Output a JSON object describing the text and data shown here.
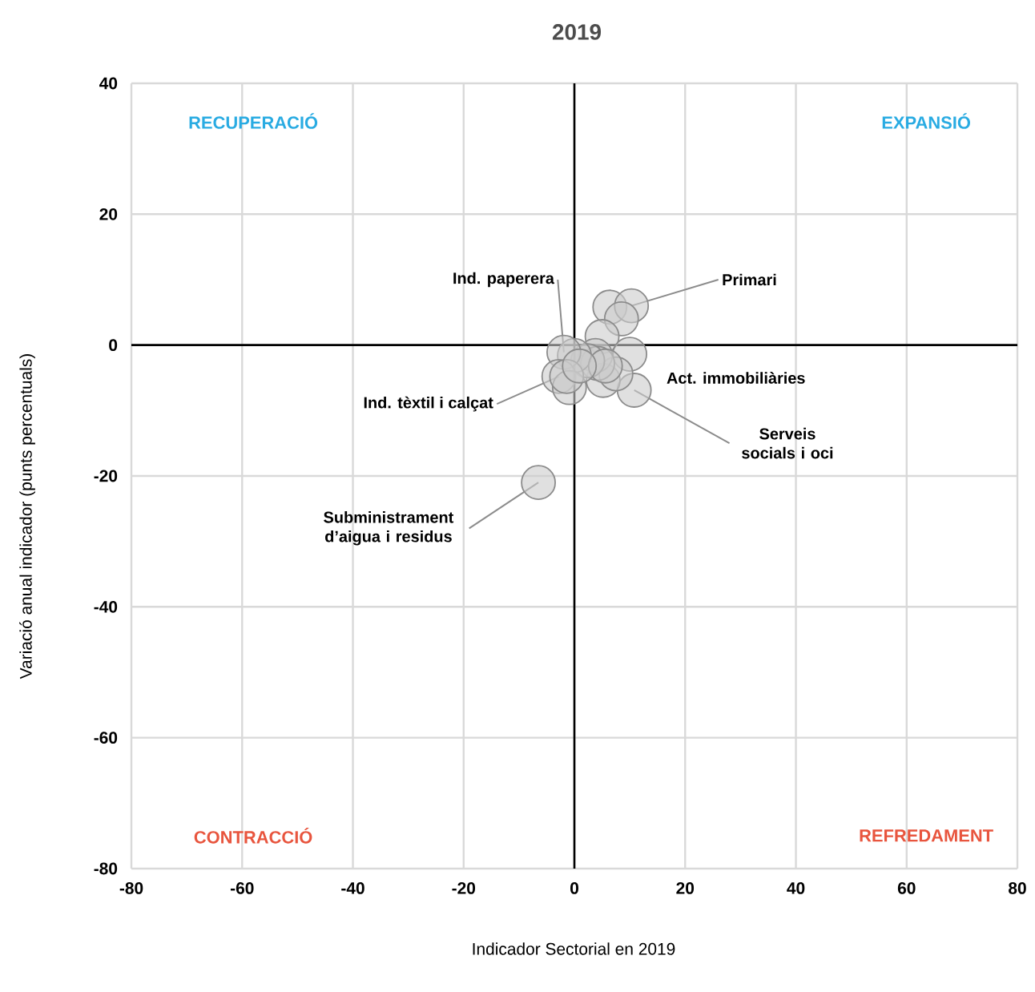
{
  "chart_data": {
    "type": "scatter",
    "title": "2019",
    "xlabel": "Indicador Sectorial en 2019",
    "ylabel": "Variació anual indicador (punts percentuals)",
    "xlim": [
      -80,
      80
    ],
    "ylim": [
      -80,
      40
    ],
    "xticks": [
      -80,
      -60,
      -40,
      -20,
      0,
      20,
      40,
      60,
      80
    ],
    "yticks": [
      -80,
      -60,
      -40,
      -20,
      0,
      20,
      40
    ],
    "grid": true,
    "series": [
      {
        "color": "#cccccc",
        "x": [
          -6.5,
          6.4,
          10.3,
          8.5,
          5.0,
          10.0,
          10.8,
          5.2,
          7.5,
          3.8,
          4.2,
          2.4,
          0.0,
          -1.9,
          -2.8,
          -0.9,
          -1.4,
          5.6,
          0.9
        ],
        "values": [
          -21,
          5.8,
          6,
          4,
          1.3,
          -1.4,
          -6.9,
          -5.4,
          -4.4,
          -1.6,
          -2.8,
          -2.4,
          -1.6,
          -1.1,
          -4.8,
          -6.5,
          -4.8,
          -3.2,
          -3.2
        ]
      }
    ],
    "annotations": [
      "RECUPERACIÓ",
      "EXPANSIÓ",
      "CONTRACCIÓ",
      "REFREDAMENT",
      {
        "text": "Ind. paperera",
        "x": -1.9,
        "y": -1.1
      },
      {
        "text": "Primari",
        "x": 10.3,
        "y": 6
      },
      {
        "text": "Act. immobiliàries",
        "x": 10,
        "y": -1.4
      },
      {
        "text": "Serveis socials i oci",
        "x": 10.8,
        "y": -6.9
      },
      {
        "text": "Ind. tèxtil i calçat",
        "x": -2.8,
        "y": -4.8
      },
      {
        "text": "Subministrament d’aigua i residus",
        "x": -6.5,
        "y": -21
      }
    ]
  }
}
